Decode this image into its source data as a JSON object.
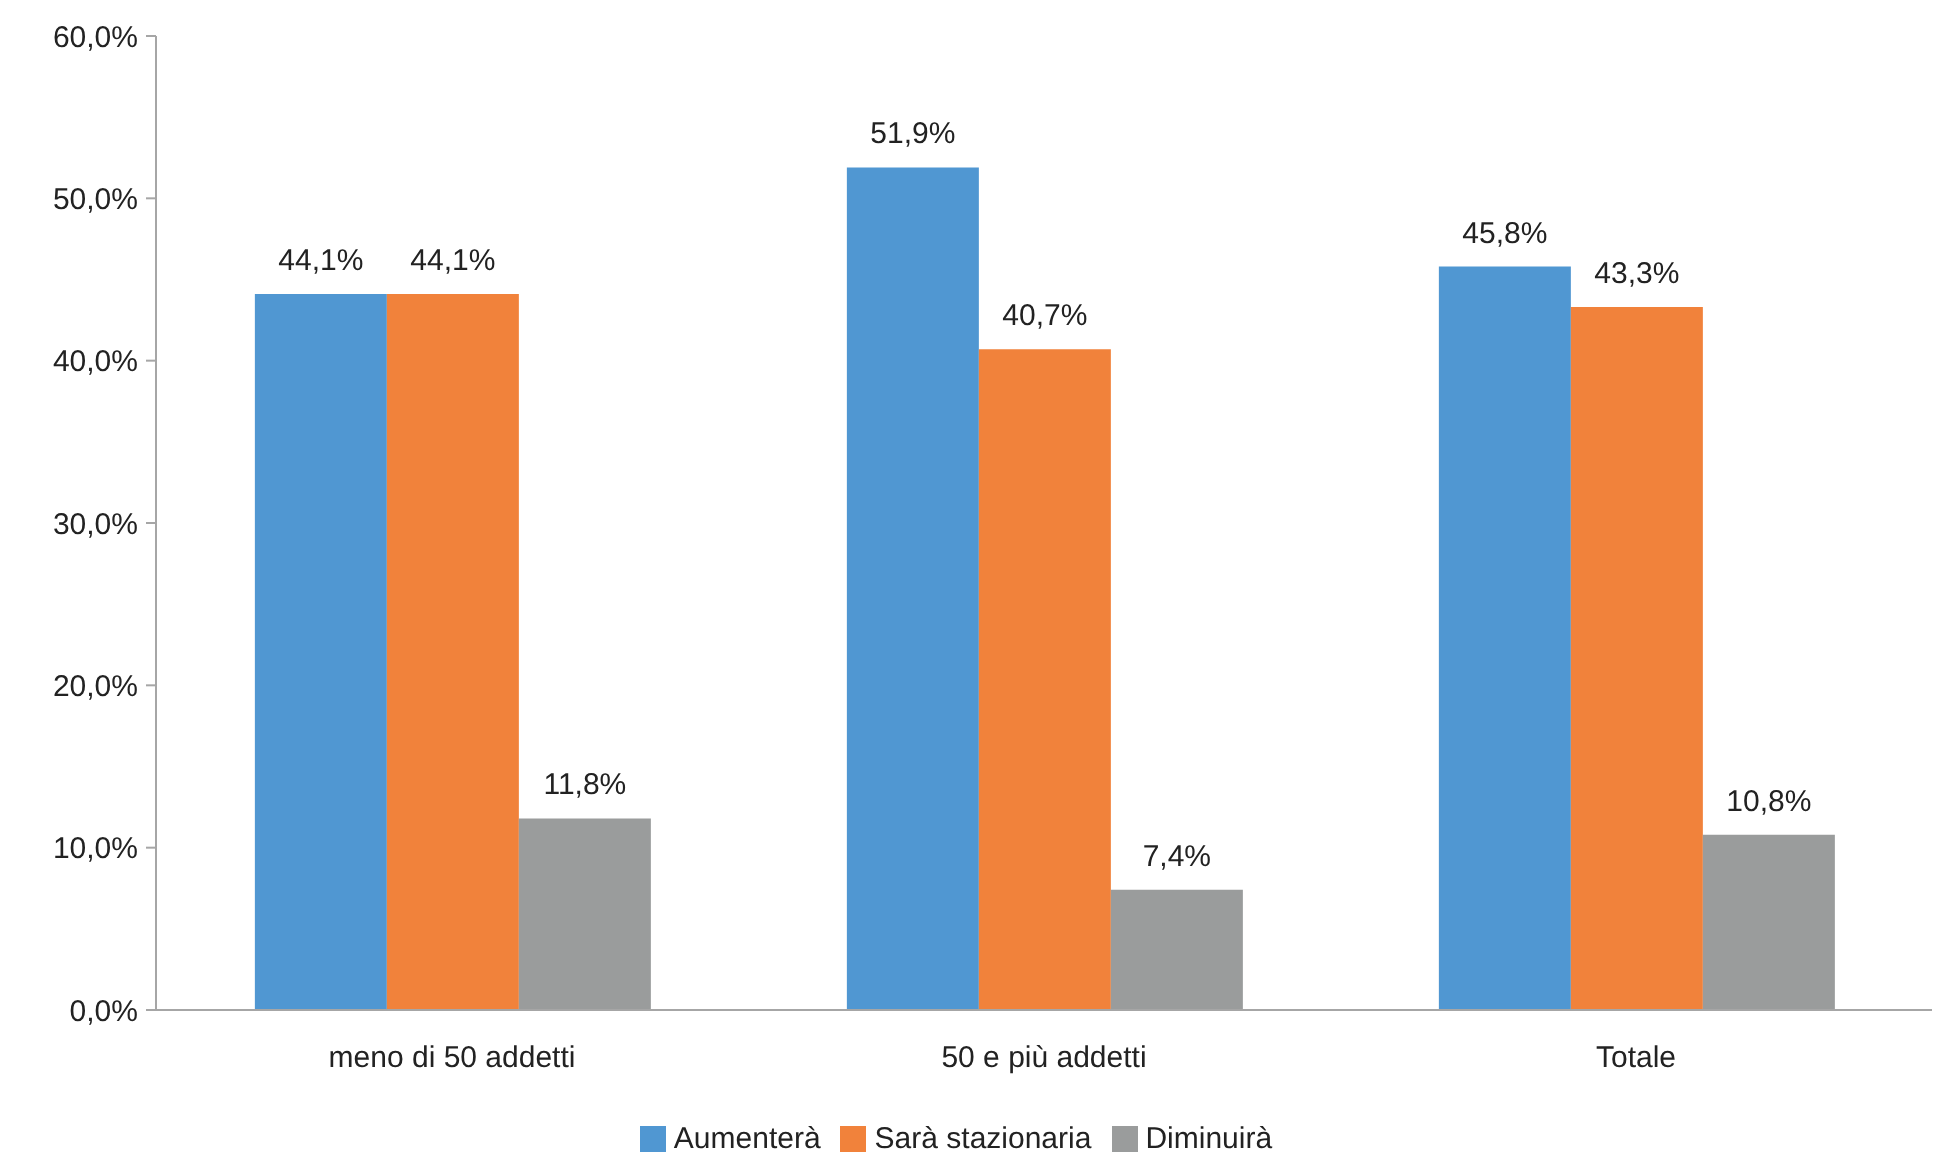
{
  "chart_data": {
    "type": "bar",
    "categories": [
      "meno di 50 addetti",
      "50 e più addetti",
      "Totale"
    ],
    "series": [
      {
        "name": "Aumenterà",
        "color": "#5097d2",
        "values": [
          44.1,
          51.9,
          45.8
        ],
        "value_labels": [
          "44,1%",
          "51,9%",
          "45,8%"
        ]
      },
      {
        "name": "Sarà stazionaria",
        "color": "#f1823b",
        "values": [
          44.1,
          40.7,
          43.3
        ],
        "value_labels": [
          "44,1%",
          "40,7%",
          "43,3%"
        ]
      },
      {
        "name": "Diminuirà",
        "color": "#9a9c9c",
        "values": [
          11.8,
          7.4,
          10.8
        ],
        "value_labels": [
          "11,8%",
          "7,4%",
          "10,8%"
        ]
      }
    ],
    "ylim": [
      0,
      60
    ],
    "yticks": [
      {
        "value": 0,
        "label": "0,0%"
      },
      {
        "value": 10,
        "label": "10,0%"
      },
      {
        "value": 20,
        "label": "20,0%"
      },
      {
        "value": 30,
        "label": "30,0%"
      },
      {
        "value": 40,
        "label": "40,0%"
      },
      {
        "value": 50,
        "label": "50,0%"
      },
      {
        "value": 60,
        "label": "60,0%"
      }
    ],
    "grid": false,
    "legend": "bottom"
  }
}
